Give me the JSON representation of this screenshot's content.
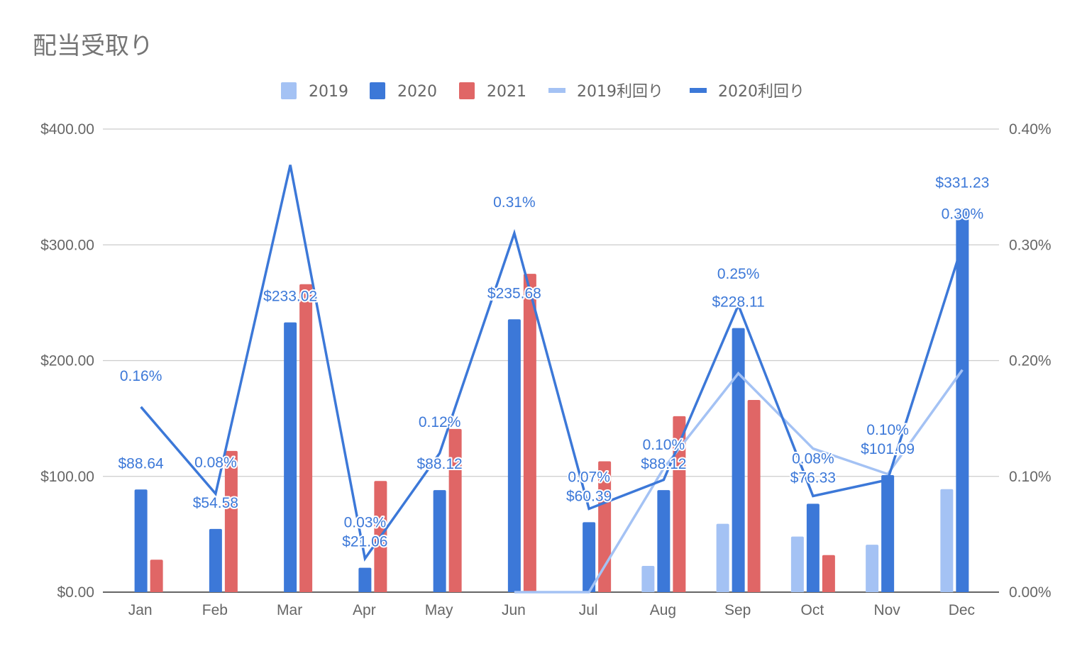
{
  "chart_data": {
    "type": "bar",
    "title": "配当受取り",
    "xlabel": "",
    "ylabel": "",
    "categories": [
      "Jan",
      "Feb",
      "Mar",
      "Apr",
      "May",
      "Jun",
      "Jul",
      "Aug",
      "Sep",
      "Oct",
      "Nov",
      "Dec"
    ],
    "ylim": [
      0,
      400
    ],
    "y2lim": [
      0,
      0.4
    ],
    "yticks": [
      "$0.00",
      "$100.00",
      "$200.00",
      "$300.00",
      "$400.00"
    ],
    "y2ticks": [
      "0.00%",
      "0.10%",
      "0.20%",
      "0.30%",
      "0.40%"
    ],
    "grid": true,
    "legend_position": "top",
    "series": [
      {
        "name": "2019",
        "kind": "bar",
        "axis": "left",
        "color": "#a4c2f4",
        "values": [
          null,
          null,
          null,
          null,
          null,
          null,
          null,
          22.7,
          59,
          48,
          41,
          89
        ]
      },
      {
        "name": "2020",
        "kind": "bar",
        "axis": "left",
        "color": "#3c78d8",
        "values": [
          88.64,
          54.58,
          233.02,
          21.06,
          88.12,
          235.68,
          60.39,
          88.12,
          228.11,
          76.33,
          101.09,
          331.23
        ],
        "labels": [
          "$88.64",
          "$54.58",
          "$233.02",
          "$21.06",
          "$88.12",
          "$235.68",
          "$60.39",
          "$88.12",
          "$228.11",
          "$76.33",
          "$101.09",
          "$331.23"
        ]
      },
      {
        "name": "2021",
        "kind": "bar",
        "axis": "left",
        "color": "#e06666",
        "values": [
          28,
          122,
          266,
          96,
          141,
          275,
          113,
          152,
          166,
          32,
          null,
          null
        ]
      },
      {
        "name": "2019利回り",
        "kind": "line",
        "axis": "right",
        "color": "#a4c2f4",
        "values": [
          null,
          null,
          null,
          null,
          null,
          0.0,
          0.0,
          0.107,
          0.189,
          0.124,
          0.102,
          0.192
        ]
      },
      {
        "name": "2020利回り",
        "kind": "line",
        "axis": "right",
        "color": "#3c78d8",
        "values": [
          0.16,
          0.085,
          0.369,
          0.029,
          0.12,
          0.31,
          0.072,
          0.097,
          0.248,
          0.083,
          0.097,
          0.3
        ],
        "labels": [
          "0.16%",
          "0.08%",
          null,
          "0.03%",
          "0.12%",
          "0.31%",
          "0.07%",
          "0.10%",
          "0.25%",
          "0.08%",
          "0.10%",
          "0.30%"
        ]
      }
    ]
  }
}
